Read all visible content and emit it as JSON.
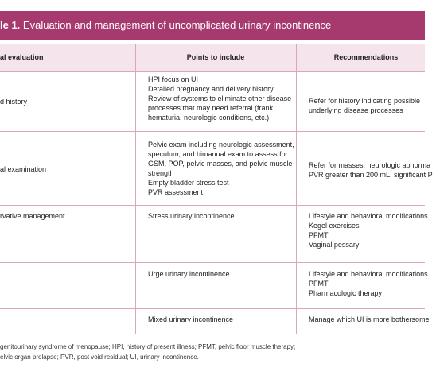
{
  "title": {
    "number": "le 1.",
    "text": "Evaluation and management of uncomplicated urinary incontinence"
  },
  "table": {
    "header": [
      "al evaluation",
      "Points to include",
      "Recommendations"
    ],
    "rows": [
      {
        "label": [
          "d history"
        ],
        "points": [
          "HPI focus on UI",
          "Detailed pregnancy and delivery history",
          "Review of systems to eliminate other disease",
          "processes that may need referral (frank",
          "hematuria, neurologic conditions, etc.)"
        ],
        "recommendations": [
          "Refer for history indicating possible",
          "underlying disease processes"
        ]
      },
      {
        "label": [
          "al examination"
        ],
        "points": [
          "Pelvic exam including neurologic assessment,",
          "speculum, and bimanual exam to assess for",
          "GSM, POP, pelvic masses, and pelvic muscle",
          "strength",
          "Empty bladder stress test",
          "PVR assessment"
        ],
        "recommendations": [
          "Refer for masses, neurologic abnorma",
          "PVR greater than 200 mL, significant P"
        ]
      },
      {
        "label": [
          "rvative management"
        ],
        "points": [
          "Stress urinary incontinence"
        ],
        "recommendations": [
          "Lifestyle and behavioral modifications",
          "Kegel exercises",
          "PFMT",
          "Vaginal pessary"
        ]
      },
      {
        "points": [
          "Urge urinary incontinence"
        ],
        "recommendations": [
          "Lifestyle and behavioral modifications",
          "PFMT",
          "Pharmacologic therapy"
        ]
      },
      {
        "points": [
          "Mixed urinary incontinence"
        ],
        "recommendations": [
          "Manage which UI is more bothersome"
        ]
      }
    ]
  },
  "footnote": [
    "genitourinary syndrome of menopause; HPI, history of present illness; PFMT, pelvic floor muscle therapy;",
    "elvic organ prolapse; PVR, post void residual; UI, urinary incontinence."
  ]
}
